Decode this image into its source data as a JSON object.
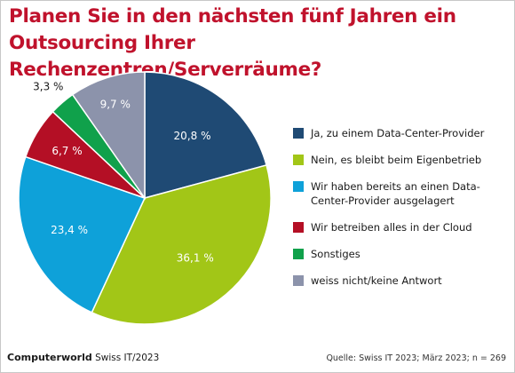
{
  "chart_data": {
    "type": "pie",
    "title": "Planen Sie in den nächsten fünf Jahren ein Outsourcing Ihrer Rechenzentren/Serverräume?",
    "unit": "%",
    "slices": [
      {
        "label": "Ja, zu einem Data-Center-Provider",
        "value": 20.8,
        "display": "20,8 %",
        "color": "#1f4a74"
      },
      {
        "label": "Nein, es bleibt beim Eigenbetrieb",
        "value": 36.1,
        "display": "36,1 %",
        "color": "#a2c617"
      },
      {
        "label": "Wir haben bereits an einen Data-Center-Provider ausgelagert",
        "value": 23.4,
        "display": "23,4 %",
        "color": "#0ea1d9"
      },
      {
        "label": "Wir betreiben alles in der Cloud",
        "value": 6.7,
        "display": "6,7 %",
        "color": "#b40f25"
      },
      {
        "label": "Sonstiges",
        "value": 3.3,
        "display": "3,3 %",
        "color": "#10a14b"
      },
      {
        "label": "weiss nicht/keine Antwort",
        "value": 9.7,
        "display": "9,7 %",
        "color": "#8c93ab"
      }
    ],
    "legend_position": "right"
  },
  "footer": {
    "brand": "Computerworld",
    "publication": "Swiss IT/2023",
    "source": "Quelle: Swiss IT 2023; März 2023; n = 269"
  }
}
